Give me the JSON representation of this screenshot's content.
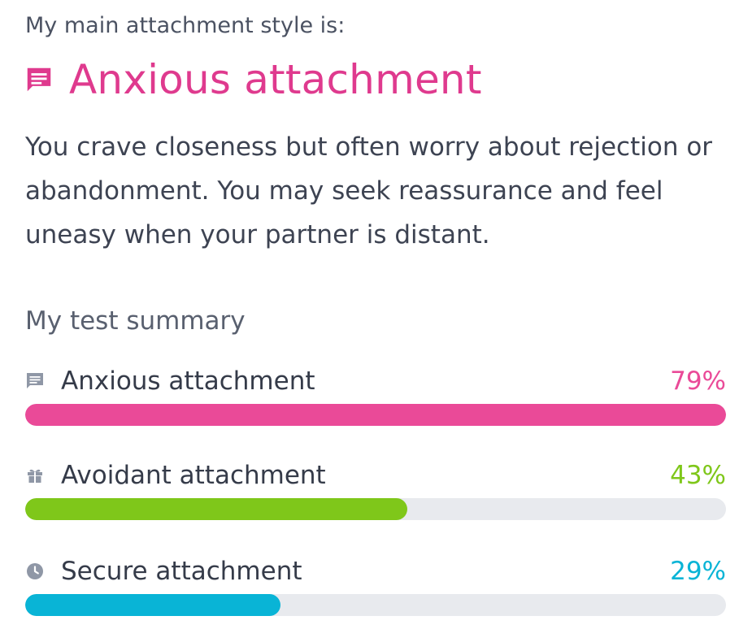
{
  "header": {
    "intro": "My main attachment style is:",
    "title": "Anxious attachment",
    "title_icon": "chat-bubble-icon",
    "title_color": "#df3a8e"
  },
  "description": "You crave closeness but often worry about rejection or abandonment. You may seek reassurance and feel uneasy when your partner is distant.",
  "summary": {
    "title": "My test summary",
    "items": [
      {
        "label": "Anxious attachment",
        "value_text": "79%",
        "fill_fraction": 1.0,
        "color": "#ea4a98",
        "icon": "chat-bubble-icon"
      },
      {
        "label": "Avoidant attachment",
        "value_text": "43%",
        "fill_fraction": 0.545,
        "color": "#7fc71a",
        "icon": "gift-icon"
      },
      {
        "label": "Secure attachment",
        "value_text": "29%",
        "fill_fraction": 0.364,
        "color": "#09b4d6",
        "icon": "clock-icon"
      }
    ]
  }
}
